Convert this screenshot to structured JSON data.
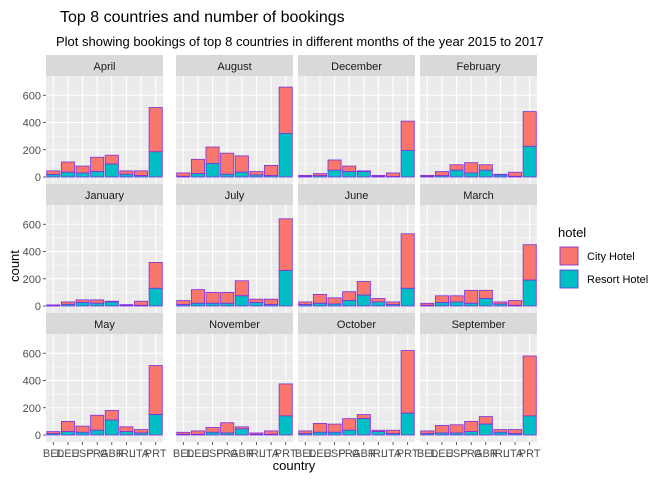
{
  "chart_data": {
    "type": "bar",
    "stacked": true,
    "faceted": true,
    "title": "Top 8 countries and number of bookings",
    "subtitle": "Plot showing bookings of top 8 countries in different months of the year 2015 to 2017",
    "xlabel": "country",
    "ylabel": "count",
    "ylim": [
      0,
      690
    ],
    "yticks": [
      0,
      200,
      400,
      600
    ],
    "categories": [
      "BEL",
      "DEU",
      "ESP",
      "FRA",
      "GBR",
      "IRL",
      "ITA",
      "PRT"
    ],
    "legend": {
      "title": "hotel",
      "position": "right",
      "entries": [
        {
          "name": "City Hotel",
          "color": "#F8766D"
        },
        {
          "name": "Resort Hotel",
          "color": "#00BFC4"
        }
      ]
    },
    "bar_outline_color": "#7B2FE0",
    "panel_background": "#EBEBEB",
    "strip_background": "#D9D9D9",
    "facets": [
      {
        "month": "April",
        "total": [
          45,
          110,
          80,
          145,
          160,
          45,
          45,
          510
        ],
        "resort": [
          18,
          35,
          30,
          40,
          95,
          20,
          10,
          185
        ]
      },
      {
        "month": "August",
        "total": [
          30,
          130,
          220,
          175,
          155,
          40,
          85,
          660
        ],
        "resort": [
          5,
          25,
          100,
          20,
          35,
          15,
          10,
          320
        ]
      },
      {
        "month": "December",
        "total": [
          12,
          25,
          125,
          80,
          45,
          12,
          30,
          410
        ],
        "resort": [
          5,
          10,
          50,
          40,
          40,
          5,
          3,
          195
        ]
      },
      {
        "month": "February",
        "total": [
          12,
          40,
          90,
          105,
          90,
          20,
          35,
          480
        ],
        "resort": [
          5,
          10,
          50,
          30,
          50,
          15,
          5,
          225
        ]
      },
      {
        "month": "January",
        "total": [
          8,
          30,
          45,
          45,
          35,
          10,
          35,
          320
        ],
        "resort": [
          2,
          12,
          25,
          20,
          30,
          5,
          5,
          130
        ]
      },
      {
        "month": "July",
        "total": [
          40,
          120,
          100,
          100,
          185,
          50,
          50,
          640
        ],
        "resort": [
          10,
          20,
          20,
          20,
          75,
          25,
          10,
          260
        ]
      },
      {
        "month": "June",
        "total": [
          30,
          85,
          60,
          105,
          180,
          55,
          30,
          530
        ],
        "resort": [
          10,
          20,
          15,
          40,
          80,
          30,
          10,
          130
        ]
      },
      {
        "month": "March",
        "total": [
          20,
          75,
          75,
          115,
          115,
          30,
          40,
          450
        ],
        "resort": [
          5,
          25,
          30,
          20,
          55,
          15,
          5,
          190
        ]
      },
      {
        "month": "May",
        "total": [
          25,
          100,
          65,
          145,
          180,
          60,
          40,
          510
        ],
        "resort": [
          10,
          25,
          20,
          35,
          110,
          25,
          15,
          150
        ]
      },
      {
        "month": "November",
        "total": [
          20,
          30,
          55,
          90,
          60,
          15,
          30,
          375
        ],
        "resort": [
          5,
          5,
          20,
          15,
          45,
          5,
          5,
          140
        ]
      },
      {
        "month": "October",
        "total": [
          30,
          85,
          80,
          120,
          150,
          35,
          35,
          620
        ],
        "resort": [
          10,
          20,
          20,
          35,
          120,
          25,
          10,
          160
        ]
      },
      {
        "month": "September",
        "total": [
          30,
          70,
          75,
          100,
          135,
          40,
          40,
          580
        ],
        "resort": [
          10,
          15,
          15,
          25,
          80,
          20,
          10,
          140
        ]
      }
    ]
  }
}
